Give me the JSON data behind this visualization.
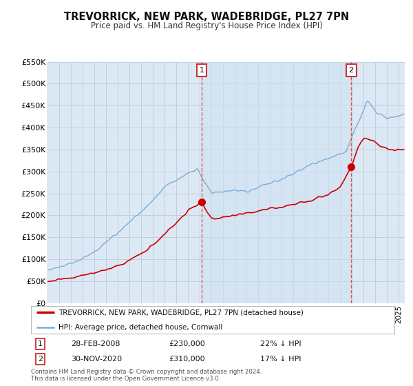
{
  "title": "TREVORRICK, NEW PARK, WADEBRIDGE, PL27 7PN",
  "subtitle": "Price paid vs. HM Land Registry's House Price Index (HPI)",
  "ylim": [
    0,
    550000
  ],
  "yticks": [
    0,
    50000,
    100000,
    150000,
    200000,
    250000,
    300000,
    350000,
    400000,
    450000,
    500000,
    550000
  ],
  "ytick_labels": [
    "£0",
    "£50K",
    "£100K",
    "£150K",
    "£200K",
    "£250K",
    "£300K",
    "£350K",
    "£400K",
    "£450K",
    "£500K",
    "£550K"
  ],
  "bg_color": "#dce9f5",
  "grid_color": "#c8d8e8",
  "marker1_year": 2008.16,
  "marker1_value": 230000,
  "marker1_date_str": "28-FEB-2008",
  "marker1_price_str": "£230,000",
  "marker1_pct_str": "22% ↓ HPI",
  "marker2_year": 2020.92,
  "marker2_value": 310000,
  "marker2_date_str": "30-NOV-2020",
  "marker2_price_str": "£310,000",
  "marker2_pct_str": "17% ↓ HPI",
  "legend_label_red": "TREVORRICK, NEW PARK, WADEBRIDGE, PL27 7PN (detached house)",
  "legend_label_blue": "HPI: Average price, detached house, Cornwall",
  "footer_line1": "Contains HM Land Registry data © Crown copyright and database right 2024.",
  "footer_line2": "This data is licensed under the Open Government Licence v3.0.",
  "red_color": "#cc0000",
  "blue_color": "#7aadd4",
  "dashed_color": "#dd4444",
  "xmin": 1995,
  "xmax": 2025.5
}
